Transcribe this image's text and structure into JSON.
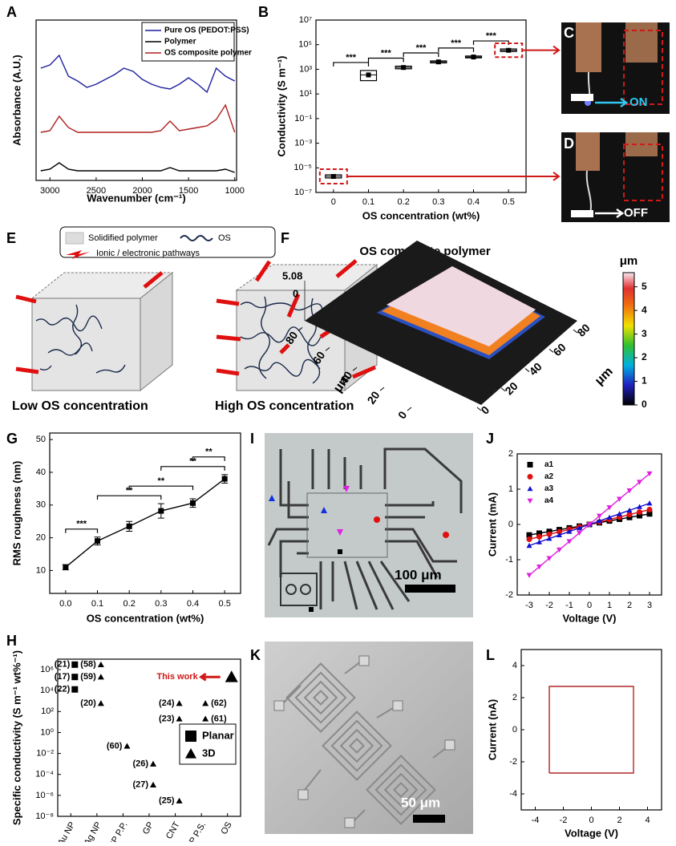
{
  "chart_data": [
    {
      "type": "line",
      "xlabel": "Wavenumber (cm⁻¹)",
      "ylabel": "Absorbance (A.U.)",
      "x": [
        3100,
        3000,
        2900,
        2800,
        2700,
        2600,
        2500,
        2400,
        2300,
        2200,
        2100,
        2000,
        1900,
        1800,
        1700,
        1600,
        1500,
        1400,
        1300,
        1200,
        1100,
        1000
      ],
      "xlim": [
        3150,
        980
      ],
      "xticks": [
        3000,
        2500,
        2000,
        1500,
        1000
      ],
      "ylim": [
        0,
        1
      ],
      "legend": "upper right",
      "series": [
        {
          "name": "Pure OS (PEDOT:PSS)",
          "color": "#1f1fa0",
          "values": [
            0.7,
            0.72,
            0.78,
            0.65,
            0.62,
            0.58,
            0.6,
            0.63,
            0.66,
            0.7,
            0.68,
            0.63,
            0.6,
            0.58,
            0.57,
            0.6,
            0.64,
            0.6,
            0.55,
            0.7,
            0.65,
            0.62
          ]
        },
        {
          "name": "Polymer",
          "color": "#000000",
          "values": [
            0.06,
            0.07,
            0.11,
            0.07,
            0.06,
            0.06,
            0.06,
            0.06,
            0.06,
            0.06,
            0.06,
            0.06,
            0.06,
            0.06,
            0.08,
            0.06,
            0.06,
            0.06,
            0.06,
            0.06,
            0.07,
            0.05
          ]
        },
        {
          "name": "OS composite polymer",
          "color": "#b02020",
          "values": [
            0.3,
            0.31,
            0.4,
            0.33,
            0.3,
            0.3,
            0.3,
            0.3,
            0.3,
            0.3,
            0.3,
            0.3,
            0.3,
            0.31,
            0.37,
            0.31,
            0.32,
            0.33,
            0.34,
            0.38,
            0.47,
            0.3
          ]
        }
      ]
    },
    {
      "type": "box",
      "xlabel": "OS concentration (wt%)",
      "ylabel": "Conductivity (S m⁻¹)",
      "log_y": true,
      "color": "#000000",
      "categories": [
        "0",
        "0.1",
        "0.2",
        "0.3",
        "0.4",
        "0.5"
      ],
      "values": [
        2e-06,
        350,
        1400,
        4000,
        10000,
        35000
      ],
      "box_low": [
        1.5e-06,
        120,
        1100,
        3300,
        8500,
        28000
      ],
      "box_high": [
        2.7e-06,
        800,
        1800,
        4800,
        12000,
        45000
      ],
      "ylim": [
        1e-07,
        10000000.0
      ],
      "yticks": [
        {
          "value": 1e-07,
          "label": "10⁻⁷"
        },
        {
          "value": 1e-05,
          "label": "10⁻⁵"
        },
        {
          "value": 0.001,
          "label": "10⁻³"
        },
        {
          "value": 0.1,
          "label": "10⁻¹"
        },
        {
          "value": 10,
          "label": "10¹"
        },
        {
          "value": 1000,
          "label": "10³"
        },
        {
          "value": 100000,
          "label": "10⁵"
        },
        {
          "value": 10000000,
          "label": "10⁷"
        }
      ],
      "comparisons": [
        {
          "label": "***",
          "pair": [
            "0",
            "0.1"
          ]
        },
        {
          "label": "***",
          "pair": [
            "0.1",
            "0.2"
          ]
        },
        {
          "label": "***",
          "pair": [
            "0.2",
            "0.3"
          ]
        },
        {
          "label": "***",
          "pair": [
            "0.3",
            "0.4"
          ]
        },
        {
          "label": "***",
          "pair": [
            "0.4",
            "0.5"
          ]
        }
      ]
    },
    {
      "type": "line",
      "xlabel": "OS concentration (wt%)",
      "ylabel": "RMS roughness (nm)",
      "x": [
        0,
        0.1,
        0.2,
        0.3,
        0.4,
        0.5
      ],
      "xlim": [
        -0.05,
        0.55
      ],
      "xticks": [
        {
          "value": 0,
          "label": "0.0"
        },
        {
          "value": 0.1,
          "label": "0.1"
        },
        {
          "value": 0.2,
          "label": "0.2"
        },
        {
          "value": 0.3,
          "label": "0.3"
        },
        {
          "value": 0.4,
          "label": "0.4"
        },
        {
          "value": 0.5,
          "label": "0.5"
        }
      ],
      "ylim": [
        3,
        52
      ],
      "yticks": [
        10,
        20,
        30,
        40,
        50
      ],
      "series": [
        {
          "color": "#000000",
          "marker": "square",
          "values": [
            11,
            19,
            23.5,
            28.2,
            30.6,
            38
          ],
          "errors": [
            0.8,
            1.2,
            1.5,
            2.2,
            1.3,
            1.3
          ]
        }
      ],
      "comparisons": [
        {
          "label": "***",
          "pair": [
            0,
            0.1
          ]
        },
        {
          "label": "**",
          "pair": [
            0.1,
            0.3
          ]
        },
        {
          "label": "**",
          "pair": [
            0.2,
            0.4
          ]
        },
        {
          "label": "**",
          "pair": [
            0.3,
            0.5
          ]
        },
        {
          "label": "**",
          "pair": [
            0.4,
            0.5
          ]
        }
      ]
    },
    {
      "type": "scatter",
      "ylabel": "Specific conductivity (S m⁻¹ wt%⁻¹)",
      "log_y": true,
      "categories": [
        "Au NP",
        "Ag NP",
        "CP P.P.",
        "GP",
        "CNT",
        "CNT + CP P.S.",
        "OS"
      ],
      "ylim": [
        1e-08,
        10000000.0
      ],
      "yticks": [
        {
          "value": 1e-08,
          "label": "10⁻⁸"
        },
        {
          "value": 1e-06,
          "label": "10⁻⁶"
        },
        {
          "value": 0.0001,
          "label": "10⁻⁴"
        },
        {
          "value": 0.01,
          "label": "10⁻²"
        },
        {
          "value": 1,
          "label": "10⁰"
        },
        {
          "value": 100,
          "label": "10²"
        },
        {
          "value": 10000,
          "label": "10⁴"
        },
        {
          "value": 1000000,
          "label": "10⁶"
        }
      ],
      "legend": "right",
      "annotation": "This work",
      "series": [
        {
          "name": "Planar",
          "marker": "square",
          "color": "#000000",
          "points": [
            {
              "category": "Au NP",
              "value": 3000000,
              "label": "(21)"
            },
            {
              "category": "Au NP",
              "value": 200000,
              "label": "(17)"
            },
            {
              "category": "Au NP",
              "value": 13000,
              "label": "(22)"
            }
          ]
        },
        {
          "name": "3D",
          "marker": "triangle",
          "color": "#000000",
          "points": [
            {
              "category": "Ag NP",
              "value": 3000000,
              "label": "(58)"
            },
            {
              "category": "Ag NP",
              "value": 200000,
              "label": "(59)"
            },
            {
              "category": "Ag NP",
              "value": 600,
              "label": "(20)"
            },
            {
              "category": "CP P.P.",
              "value": 0.05,
              "label": "(60)"
            },
            {
              "category": "GP",
              "value": 0.001,
              "label": "(26)"
            },
            {
              "category": "GP",
              "value": 1e-05,
              "label": "(27)"
            },
            {
              "category": "CNT",
              "value": 600,
              "label": "(24)"
            },
            {
              "category": "CNT",
              "value": 20,
              "label": "(23)"
            },
            {
              "category": "CNT",
              "value": 3e-07,
              "label": "(25)"
            },
            {
              "category": "CNT + CP P.S.",
              "value": 600,
              "label": "(62)"
            },
            {
              "category": "CNT + CP P.S.",
              "value": 20,
              "label": "(61)"
            },
            {
              "category": "OS",
              "value": 200000
            }
          ]
        }
      ]
    },
    {
      "type": "line",
      "xlabel": "Voltage (V)",
      "ylabel": "Current (mA)",
      "x": [
        -3,
        -2.5,
        -2,
        -1.5,
        -1,
        -0.5,
        0,
        0.5,
        1,
        1.5,
        2,
        2.5,
        3
      ],
      "xlim": [
        -3.6,
        3.6
      ],
      "xticks": [
        -3,
        -2,
        -1,
        0,
        1,
        2,
        3
      ],
      "ylim": [
        -2,
        2
      ],
      "yticks": [
        -2,
        -1,
        0,
        1,
        2
      ],
      "legend": "upper left",
      "series": [
        {
          "name": "a1",
          "color": "#000000",
          "marker": "square",
          "values": [
            -0.3,
            -0.25,
            -0.2,
            -0.15,
            -0.1,
            -0.05,
            0,
            0.05,
            0.1,
            0.15,
            0.2,
            0.25,
            0.3
          ]
        },
        {
          "name": "a2",
          "color": "#e01010",
          "marker": "circle",
          "values": [
            -0.42,
            -0.35,
            -0.28,
            -0.21,
            -0.14,
            -0.07,
            0,
            0.07,
            0.14,
            0.21,
            0.28,
            0.35,
            0.42
          ]
        },
        {
          "name": "a3",
          "color": "#1010d0",
          "marker": "triangle",
          "values": [
            -0.6,
            -0.5,
            -0.4,
            -0.3,
            -0.2,
            -0.1,
            0,
            0.1,
            0.2,
            0.3,
            0.4,
            0.5,
            0.6
          ]
        },
        {
          "name": "a4",
          "color": "#e020e0",
          "marker": "triangle-down",
          "values": [
            -1.44,
            -1.2,
            -0.96,
            -0.72,
            -0.48,
            -0.24,
            0,
            0.24,
            0.48,
            0.72,
            0.96,
            1.2,
            1.44
          ]
        }
      ]
    },
    {
      "type": "line",
      "xlabel": "Voltage (V)",
      "ylabel": "Current (nA)",
      "x": [
        -3,
        -3,
        3,
        3,
        -3
      ],
      "xlim": [
        -5,
        5
      ],
      "xticks": [
        -4,
        -2,
        0,
        2,
        4
      ],
      "ylim": [
        -5,
        5
      ],
      "yticks": [
        -4,
        -2,
        0,
        2,
        4
      ],
      "series": [
        {
          "color": "#b02828",
          "values": [
            -2.7,
            2.7,
            2.7,
            -2.7,
            -2.7
          ]
        }
      ]
    }
  ],
  "panel_labels": [
    "A",
    "B",
    "C",
    "D",
    "E",
    "F",
    "G",
    "H",
    "I",
    "J",
    "K",
    "L"
  ],
  "panel_c": {
    "state": "ON"
  },
  "panel_d": {
    "state": "OFF"
  },
  "panel_e": {
    "legend_polymer": "Solidified polymer",
    "legend_os": "OS",
    "legend_pathways": "Ionic / electronic pathways",
    "caption_low": "Low OS concentration",
    "caption_high": "High OS concentration"
  },
  "panel_f": {
    "title": "OS composite polymer",
    "colorbar_unit": "μm",
    "colorbar_lim": [
      0,
      5.6
    ],
    "colorbar_ticks": [
      0,
      1,
      2,
      3,
      4,
      5
    ],
    "z_max": "5.08",
    "z_min": "0",
    "axis_lim": [
      0,
      90
    ],
    "axis_ticks": [
      80,
      60,
      40,
      20,
      0
    ],
    "axis_unit": "μm"
  },
  "panel_i": {
    "scale_bar": "100 μm"
  },
  "panel_k": {
    "scale_bar": "50 μm"
  }
}
